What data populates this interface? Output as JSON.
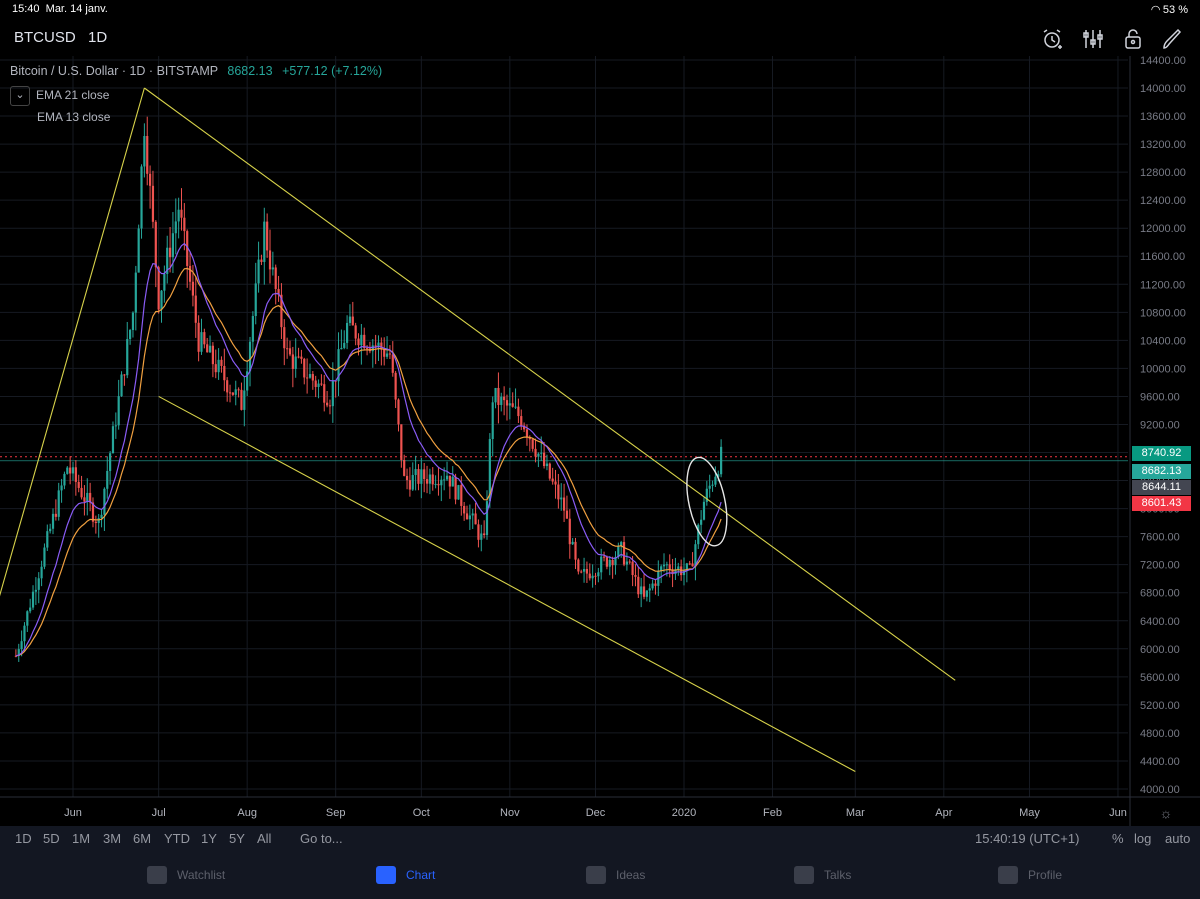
{
  "status_bar": {
    "time": "15:40",
    "date": "Mar. 14 janv.",
    "battery": "53 %"
  },
  "header": {
    "symbol": "BTCUSD",
    "interval": "1D",
    "icons": [
      "alarm-add-icon",
      "indicators-icon",
      "lock-icon",
      "draw-icon"
    ]
  },
  "legend": {
    "title": "Bitcoin / U.S. Dollar · 1D · BITSTAMP",
    "price": "8682.13",
    "change": "+577.12 (+7.12%)",
    "ema1": "EMA 21 close",
    "ema2": "EMA 13 close"
  },
  "price_tags": [
    {
      "label": "8740.92",
      "color": "#089981"
    },
    {
      "label": "8682.13",
      "color": "#26a69a"
    },
    {
      "label": "8644.11",
      "color": "#434651"
    },
    {
      "label": "8601.43",
      "color": "#f23645"
    }
  ],
  "range_bar": {
    "ranges": [
      "1D",
      "5D",
      "1M",
      "3M",
      "6M",
      "YTD",
      "1Y",
      "5Y",
      "All"
    ],
    "goto": "Go to...",
    "clock": "15:40:19 (UTC+1)",
    "percent": "%",
    "log": "log",
    "auto": "auto"
  },
  "nav": {
    "items": [
      {
        "label": "Watchlist",
        "icon": "watchlist-icon"
      },
      {
        "label": "Chart",
        "icon": "chart-icon"
      },
      {
        "label": "Ideas",
        "icon": "ideas-icon"
      },
      {
        "label": "Talks",
        "icon": "talks-icon"
      },
      {
        "label": "Profile",
        "icon": "profile-icon"
      }
    ]
  },
  "chart_data": {
    "type": "candlestick",
    "y_ticks": [
      14400,
      14000,
      13600,
      13200,
      12800,
      12400,
      12000,
      11600,
      11200,
      10800,
      10400,
      10000,
      9600,
      9200,
      8800,
      8400,
      8000,
      7600,
      7200,
      6800,
      6400,
      6000,
      5600,
      5200,
      4800,
      4400,
      4000
    ],
    "x_ticks": [
      "Jun",
      "Jul",
      "Aug",
      "Sep",
      "Oct",
      "Nov",
      "Dec",
      "2020",
      "Feb",
      "Mar",
      "Apr",
      "May",
      "Jun"
    ],
    "series": [
      {
        "name": "EMA 21 close",
        "color": "#f0a040"
      },
      {
        "name": "EMA 13 close",
        "color": "#8a5cf6"
      }
    ],
    "path": [
      [
        "2019-05-12",
        5900
      ],
      [
        "2019-05-30",
        8600
      ],
      [
        "2019-06-10",
        7800
      ],
      [
        "2019-06-22",
        10800
      ],
      [
        "2019-06-26",
        13500
      ],
      [
        "2019-07-01",
        11000
      ],
      [
        "2019-07-08",
        12300
      ],
      [
        "2019-07-15",
        10400
      ],
      [
        "2019-07-30",
        9500
      ],
      [
        "2019-08-07",
        12000
      ],
      [
        "2019-08-15",
        10200
      ],
      [
        "2019-08-30",
        9600
      ],
      [
        "2019-09-05",
        10600
      ],
      [
        "2019-09-20",
        10200
      ],
      [
        "2019-09-25",
        8400
      ],
      [
        "2019-10-10",
        8500
      ],
      [
        "2019-10-23",
        7500
      ],
      [
        "2019-10-26",
        9600
      ],
      [
        "2019-11-05",
        9300
      ],
      [
        "2019-11-20",
        8000
      ],
      [
        "2019-11-25",
        7000
      ],
      [
        "2019-12-10",
        7400
      ],
      [
        "2019-12-18",
        6700
      ],
      [
        "2019-12-25",
        7200
      ],
      [
        "2020-01-03",
        7100
      ],
      [
        "2020-01-08",
        8100
      ],
      [
        "2020-01-14",
        8740
      ]
    ],
    "trendlines": [
      {
        "from": [
          "2019-05-01",
          6000
        ],
        "to": [
          "2019-06-26",
          14000
        ]
      },
      {
        "from": [
          "2019-06-26",
          14000
        ],
        "to": [
          "2020-04-05",
          5550
        ]
      },
      {
        "from": [
          "2019-07-01",
          9600
        ],
        "to": [
          "2020-03-01",
          4250
        ]
      }
    ],
    "annotation": {
      "shape": "ellipse",
      "center": [
        "2020-01-09",
        8100
      ]
    }
  }
}
